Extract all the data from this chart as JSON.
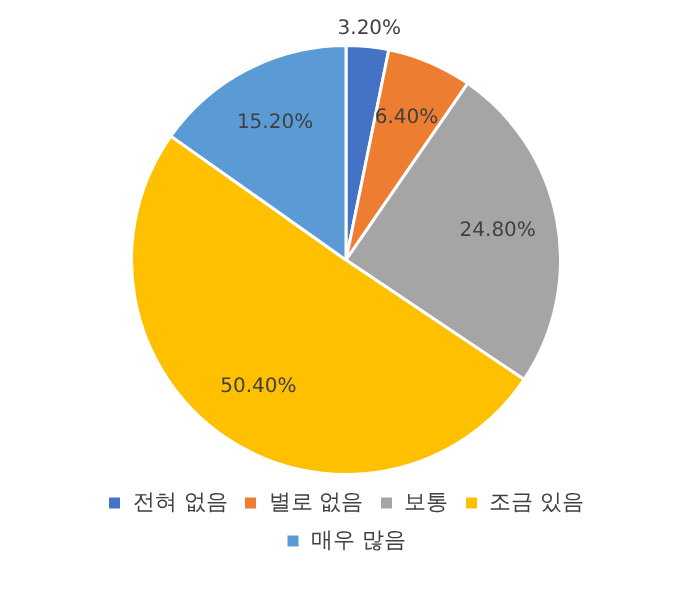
{
  "chart_data": {
    "type": "pie",
    "categories": [
      "전혀 없음",
      "별로 없음",
      "보통",
      "조금 있음",
      "매우 많음"
    ],
    "values": [
      3.2,
      6.4,
      24.8,
      50.4,
      15.2
    ],
    "value_labels": [
      "3.20%",
      "6.40%",
      "24.80%",
      "50.40%",
      "15.20%"
    ],
    "colors": [
      "#4472c4",
      "#ed7d31",
      "#a5a5a5",
      "#ffc000",
      "#5b9bd5"
    ],
    "legend": "bottom"
  }
}
